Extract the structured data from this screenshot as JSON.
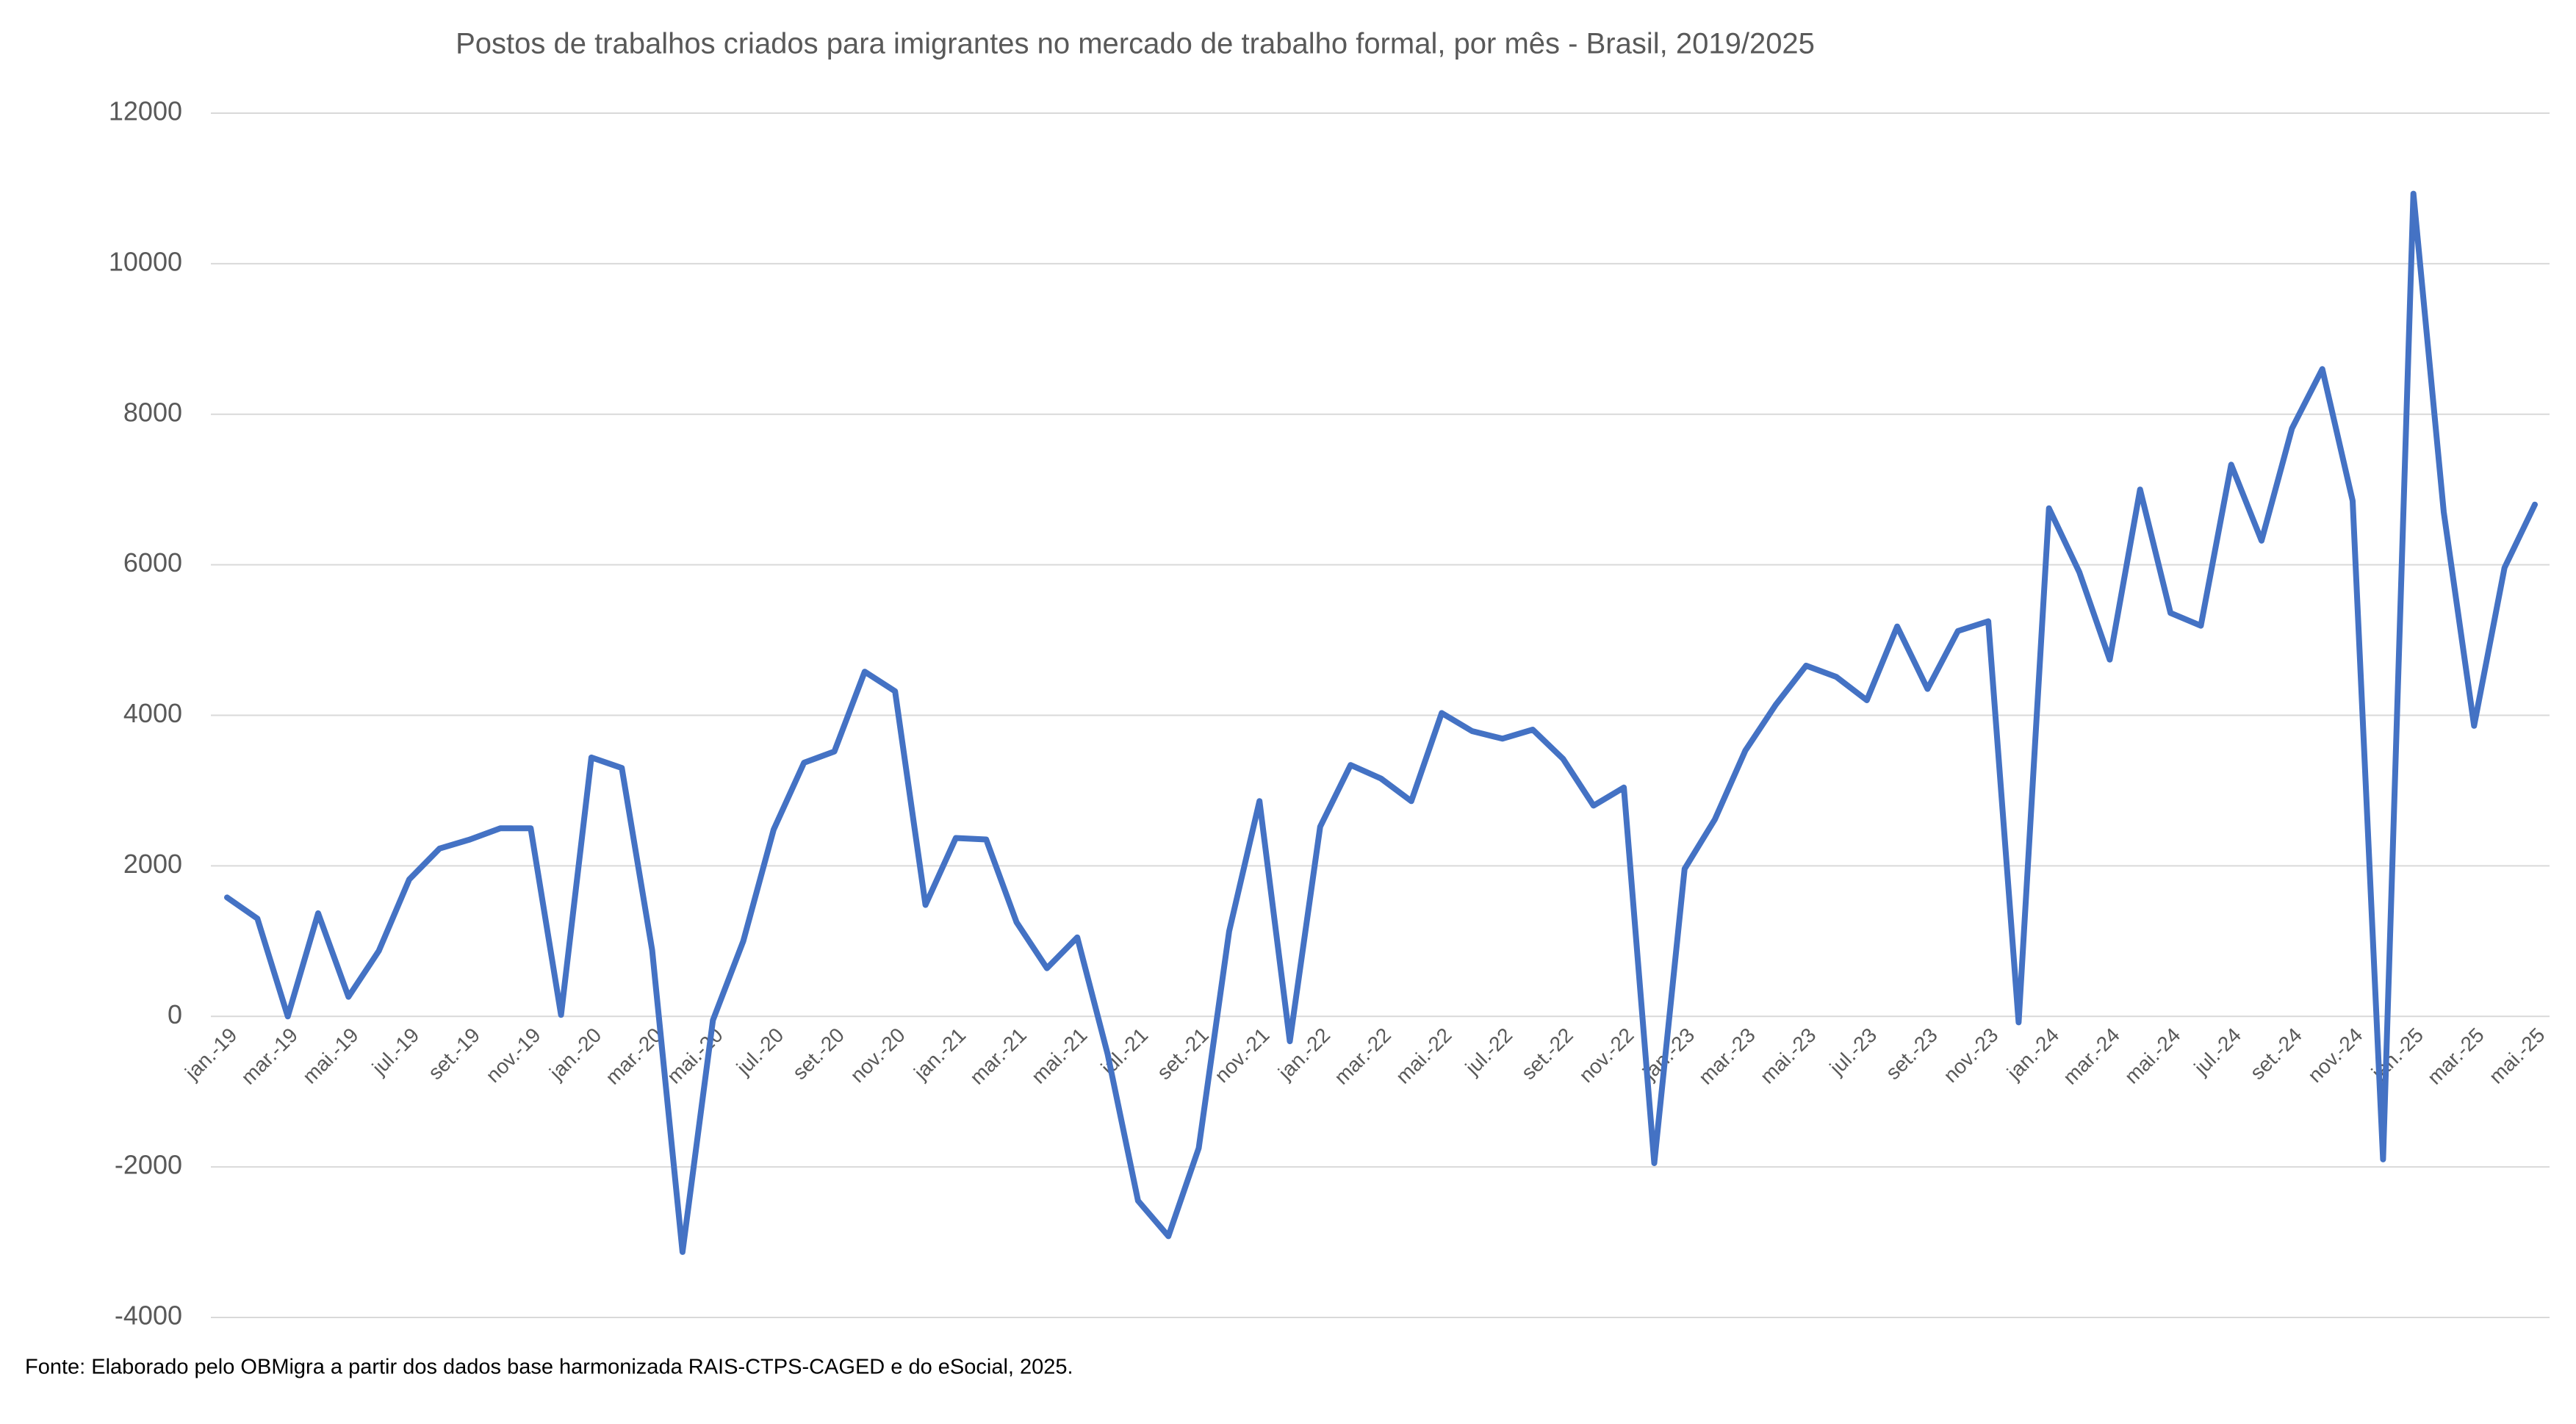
{
  "chart_data": {
    "type": "line",
    "title": "Postos de trabalhos criados para imigrantes no mercado de trabalho formal, por mês - Brasil, 2019/2025",
    "source": "Fonte: Elaborado pelo OBMigra a partir dos dados base harmonizada RAIS-CTPS-CAGED e do eSocial, 2025.",
    "categories": [
      "jan.-19",
      null,
      "mar.-19",
      null,
      "mai.-19",
      null,
      "jul.-19",
      null,
      "set.-19",
      null,
      "nov.-19",
      null,
      "jan.-20",
      null,
      "mar.-20",
      null,
      "mai.-20",
      null,
      "jul.-20",
      null,
      "set.-20",
      null,
      "nov.-20",
      null,
      "jan.-21",
      null,
      "mar.-21",
      null,
      "mai.-21",
      null,
      "jul.-21",
      null,
      "set.-21",
      null,
      "nov.-21",
      null,
      "jan.-22",
      null,
      "mar.-22",
      null,
      "mai.-22",
      null,
      "jul.-22",
      null,
      "set.-22",
      null,
      "nov.-22",
      null,
      "jan.-23",
      null,
      "mar.-23",
      null,
      "mai.-23",
      null,
      "jul.-23",
      null,
      "set.-23",
      null,
      "nov.-23",
      null,
      "jan.-24",
      null,
      "mar.-24",
      null,
      "mai.-24",
      null,
      "jul.-24",
      null,
      "set.-24",
      null,
      "nov.-24",
      null,
      "jan.-25",
      null,
      "mar.-25",
      null,
      "mai.-25"
    ],
    "values": [
      1580,
      1300,
      0,
      1370,
      260,
      870,
      1820,
      2230,
      2350,
      2500,
      2500,
      20,
      3440,
      3300,
      880,
      -3130,
      -50,
      1000,
      2480,
      3370,
      3520,
      4580,
      4320,
      1480,
      2370,
      2350,
      1250,
      640,
      1050,
      -500,
      -2450,
      -2920,
      -1750,
      1130,
      2860,
      -330,
      2520,
      3340,
      3160,
      2860,
      4030,
      3790,
      3690,
      3810,
      3420,
      2800,
      3040,
      -1950,
      1960,
      2620,
      3530,
      4140,
      4660,
      4510,
      4200,
      5180,
      4350,
      5120,
      5250,
      -80,
      6750,
      5900,
      4740,
      7000,
      5360,
      5190,
      7330,
      6320,
      7810,
      8600,
      6850,
      -1900,
      10930,
      6700,
      3860,
      5960,
      6800
    ],
    "color": "#4472c4",
    "ylim": [
      -4000,
      12000
    ],
    "yticks": [
      -4000,
      -2000,
      0,
      2000,
      4000,
      6000,
      8000,
      10000,
      12000
    ],
    "grid": true
  }
}
